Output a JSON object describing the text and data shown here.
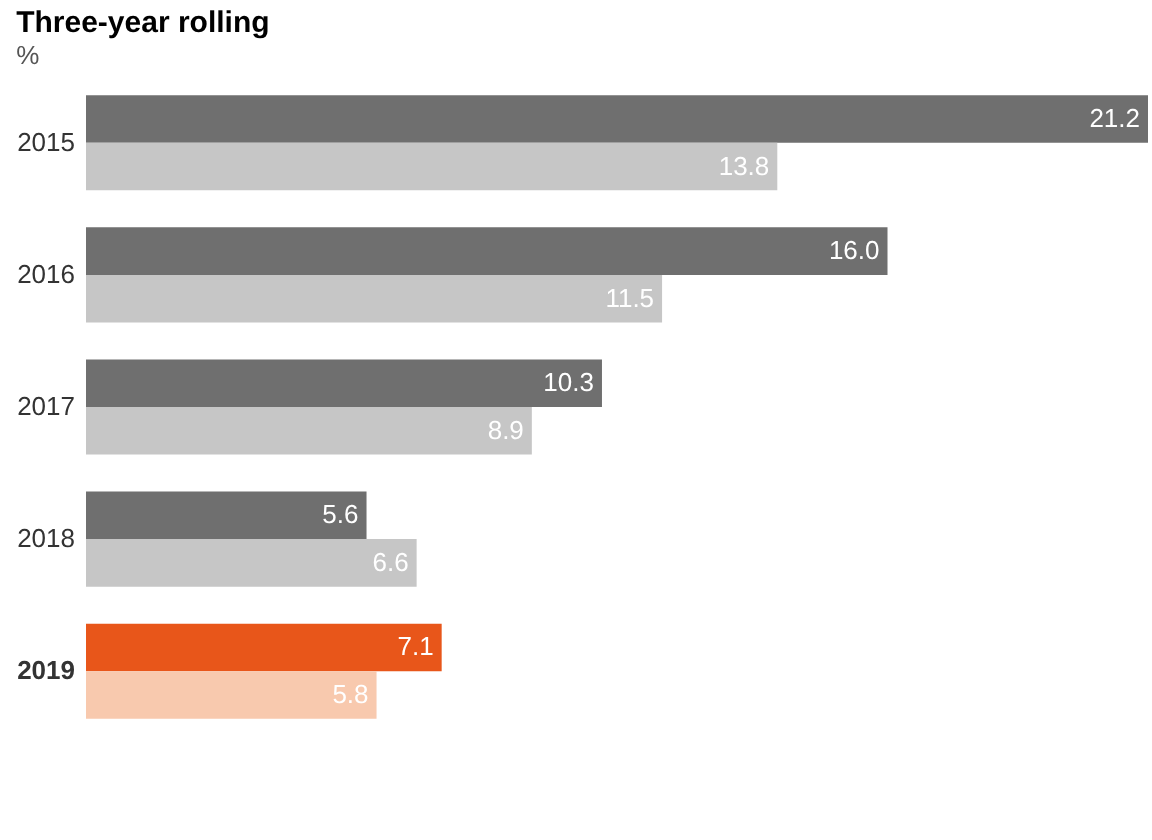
{
  "chart_data": {
    "type": "bar",
    "orientation": "horizontal",
    "title": "Three-year rolling",
    "annotations": [
      "%"
    ],
    "categories": [
      "2015",
      "2016",
      "2017",
      "2018",
      "2019"
    ],
    "series": [
      {
        "colors": [
          "#6f6f6f",
          "#6f6f6f",
          "#6f6f6f",
          "#6f6f6f",
          "#e8561a"
        ],
        "values": [
          21.2,
          16.0,
          10.3,
          5.6,
          7.1
        ],
        "value_labels": [
          "21.2",
          "16.0",
          "10.3",
          "5.6",
          "7.1"
        ]
      },
      {
        "colors": [
          "#c6c6c6",
          "#c6c6c6",
          "#c6c6c6",
          "#c6c6c6",
          "#f8c9ae"
        ],
        "values": [
          13.8,
          11.5,
          8.9,
          6.6,
          5.8
        ],
        "value_labels": [
          "13.8",
          "11.5",
          "8.9",
          "6.6",
          "5.8"
        ]
      }
    ],
    "data_labels": true
  }
}
